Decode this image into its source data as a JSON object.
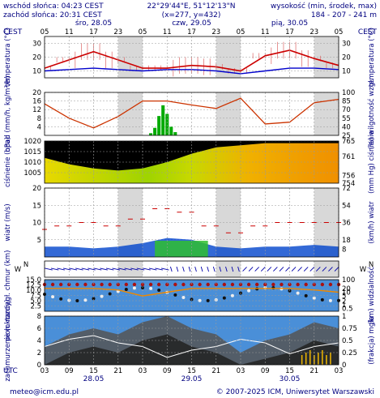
{
  "header": {
    "sunrise": "wschód słońca: 04:23 CEST",
    "sunset": "zachód słońca: 20:31 CEST",
    "coords": "22°29'44\"E, 51°12'13\"N",
    "grid": "(x=277, y=432)",
    "altitude_label": "wysokość (min, środek, max)",
    "altitude_values": "184 - 207 - 241 m",
    "tz_left": "CEST",
    "tz_right": "CEST",
    "tz_bottom": "UTC"
  },
  "days_top": [
    "śro, 28.05",
    "czw, 29.05",
    "pią, 30.05"
  ],
  "days_bottom": [
    "28.05",
    "29.05",
    "30.05"
  ],
  "hours_top": [
    "05",
    "11",
    "17",
    "23",
    "05",
    "11",
    "17",
    "23",
    "05",
    "11",
    "17",
    "23",
    "05"
  ],
  "hours_bottom": [
    "03",
    "09",
    "15",
    "21",
    "03",
    "09",
    "15",
    "21",
    "03",
    "09",
    "15",
    "21",
    "03"
  ],
  "footer": {
    "email": "meteo@icm.edu.pl",
    "copyright": "© 2007-2025 ICM, Uniwersytet Warszawski"
  },
  "colors": {
    "label": "#000080",
    "night": "#d8d8d8",
    "temp_line": "#cc0000",
    "dew_line": "#0000cc",
    "humidity_line": "#cc3300",
    "precip_bar": "#00aa00",
    "pressure_line": "#000000",
    "wind_mean": "#0044cc",
    "wind_gust": "#cc0000",
    "vis_line": "#ee8800",
    "cloud_bg": "#4a8fd8"
  },
  "chart_data": [
    {
      "type": "line",
      "panel": "temperature",
      "ylabel_left": "temperatura (°C)",
      "ylabel_right": "temperatura (°C)",
      "ylim": [
        5,
        35
      ],
      "yticks": [
        10,
        20,
        30
      ],
      "x_hours": [
        0,
        6,
        12,
        18,
        24,
        30,
        36,
        42,
        48,
        54,
        60,
        66,
        72
      ],
      "series": [
        {
          "values": [
            12,
            18,
            24,
            18,
            12,
            12,
            14,
            13,
            10,
            21,
            25,
            19,
            14
          ]
        },
        {
          "values": [
            10,
            11,
            12,
            11,
            10,
            11,
            11,
            10,
            8,
            10,
            12,
            12,
            11
          ]
        }
      ]
    },
    {
      "type": "line",
      "panel": "precipitation-humidity",
      "ylabel_left": "opad (mm/h, kg/m²/h)",
      "ylabel_right": "(%) wilgotność wzgl.",
      "ylim_left": [
        0,
        20
      ],
      "yticks_left": [
        4,
        8,
        12,
        16,
        20
      ],
      "ylim_right": [
        25,
        100
      ],
      "yticks_right": [
        25,
        40,
        55,
        70,
        85,
        100
      ],
      "x_hours": [
        0,
        6,
        12,
        18,
        24,
        30,
        36,
        42,
        48,
        54,
        60,
        66,
        72
      ],
      "series": [
        {
          "values": [
            80,
            55,
            38,
            58,
            85,
            85,
            78,
            72,
            90,
            45,
            48,
            82,
            88
          ]
        }
      ],
      "precip_x_hours": [
        26,
        27,
        28,
        29,
        30,
        31,
        32
      ],
      "precip_values": [
        1.0,
        3.5,
        9.0,
        14.0,
        10.0,
        4.0,
        1.5
      ]
    },
    {
      "type": "area",
      "panel": "pressure",
      "ylabel_left": "ciśnienie (hPa)",
      "ylabel_right": "(mm Hg) ciśnienie",
      "ylim_left": [
        1000,
        1020
      ],
      "yticks_left": [
        1005,
        1010,
        1015,
        1020
      ],
      "ylim_right": [
        754,
        765
      ],
      "yticks_right": [
        754,
        756,
        761,
        765
      ],
      "x_hours": [
        0,
        6,
        12,
        18,
        24,
        30,
        36,
        42,
        48,
        54,
        60,
        66,
        72
      ],
      "series": [
        {
          "values": [
            1012,
            1009,
            1007,
            1006,
            1007,
            1010,
            1014,
            1017,
            1018,
            1019,
            1019,
            1019,
            1019
          ]
        }
      ]
    },
    {
      "type": "line",
      "panel": "wind",
      "ylabel_left": "wiatr (m/s)",
      "ylabel_right": "(km/h) wiatr",
      "ylim_left": [
        0,
        20
      ],
      "yticks_left": [
        5,
        10,
        15,
        20
      ],
      "ylim_right": [
        0,
        72
      ],
      "yticks_right": [
        8,
        18,
        36,
        54,
        72
      ],
      "x_hours": [
        0,
        6,
        12,
        18,
        24,
        30,
        36,
        42,
        48,
        54,
        60,
        66,
        72
      ],
      "series": [
        {
          "values": [
            3,
            3,
            2.5,
            3,
            4,
            5.5,
            5,
            3,
            2.5,
            3,
            3,
            3.5,
            3
          ]
        },
        {
          "values": [
            8,
            9,
            10,
            9,
            11,
            14,
            13,
            9,
            7,
            9,
            10,
            10,
            10
          ]
        }
      ]
    },
    {
      "type": "scatter",
      "panel": "cloud-base-visibility",
      "ylabel_left": "pion. rozciągł. chmur (km)",
      "ylabel_right": "(km) widzialność",
      "ylim_left": [
        0,
        15
      ],
      "yticks_left": [
        2.5,
        5,
        7.5,
        10,
        12.5,
        15
      ],
      "yticks_left_labels": [
        "2.5",
        "5.0",
        "7.5",
        "10.0",
        "12.5",
        "15.0"
      ],
      "ylim_right": [
        0,
        100
      ],
      "yticks_right": [
        0.5,
        1,
        2,
        5,
        10,
        20,
        100
      ],
      "yticks_right_labels": [
        "0.5",
        "1",
        "2",
        "5",
        "10",
        "20",
        "100"
      ],
      "x_hours": [
        0,
        6,
        12,
        18,
        24,
        30,
        36,
        42,
        48,
        54,
        60,
        66,
        72
      ],
      "series": [
        {
          "values": [
            20,
            20,
            20,
            15,
            5,
            10,
            20,
            20,
            20,
            20,
            20,
            15,
            10
          ]
        }
      ]
    },
    {
      "type": "area",
      "panel": "cloudiness-fog",
      "ylabel_left": "zachmurzenie (oktanty)",
      "ylabel_right": "(frakcja) mgła",
      "ylim_left": [
        0,
        8
      ],
      "yticks_left": [
        0,
        2,
        4,
        6,
        8
      ],
      "ylim_right": [
        0,
        1
      ],
      "yticks_right": [
        0,
        0.25,
        0.5,
        0.75,
        1
      ],
      "x_hours": [
        0,
        6,
        12,
        18,
        24,
        30,
        36,
        42,
        48,
        54,
        60,
        66,
        72
      ],
      "series": [
        {
          "values": [
            3,
            5,
            6,
            5,
            7,
            8,
            6,
            5,
            2,
            4,
            5,
            7,
            6
          ]
        }
      ]
    }
  ]
}
